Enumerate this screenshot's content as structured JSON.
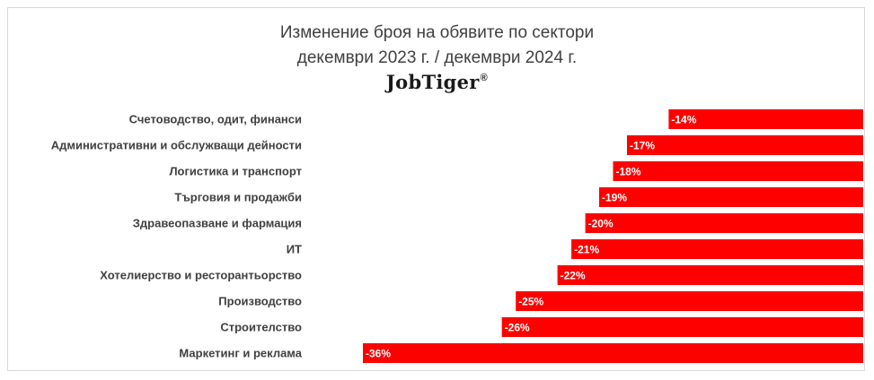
{
  "chart_data": {
    "type": "bar",
    "orientation": "horizontal",
    "title": "Изменение броя на обявите по сектори",
    "subtitle": "декември 2023 г. / декември 2024 г.",
    "brand": "JobTiger",
    "brand_mark": "®",
    "categories": [
      "Счетоводство, одит, финанси",
      "Административни и обслужващи дейности",
      "Логистика и транспорт",
      "Търговия и продажби",
      "Здравеопазване и фармация",
      "ИТ",
      "Хотелиерство и ресторантьорство",
      "Производство",
      "Строителство",
      "Маркетинг и реклама"
    ],
    "values": [
      -14,
      -17,
      -18,
      -19,
      -20,
      -21,
      -22,
      -25,
      -26,
      -36
    ],
    "value_labels": [
      "-14%",
      "-17%",
      "-18%",
      "-19%",
      "-20%",
      "-21%",
      "-22%",
      "-25%",
      "-26%",
      "-36%"
    ],
    "xlim": [
      -36,
      0
    ],
    "grid": false,
    "legend": "none",
    "bar_color": "#ff0000"
  }
}
